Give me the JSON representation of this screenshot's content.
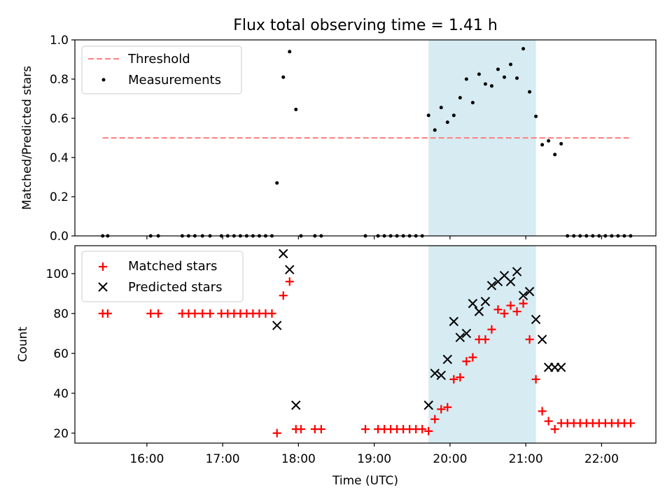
{
  "title": "Flux total observing time = 1.41 h",
  "colors": {
    "threshold": "#ff8080",
    "measurement": "#000000",
    "matched": "#ff0000",
    "predicted": "#000000",
    "span": "#add8e6"
  },
  "chart_data": [
    {
      "type": "scatter",
      "ylabel": "Matched/Predicted stars",
      "ylim": [
        0,
        1.0
      ],
      "yticks": [
        0.0,
        0.2,
        0.4,
        0.6,
        0.8,
        1.0
      ],
      "ytick_labels": [
        "0.0",
        "0.2",
        "0.4",
        "0.6",
        "0.8",
        "1.0"
      ],
      "legend_position": "upper-left",
      "span": [
        "19:43",
        "21:08"
      ],
      "threshold": {
        "name": "Threshold",
        "y": 0.5,
        "x": [
          "15:25",
          "22:23"
        ]
      },
      "series": [
        {
          "name": "Measurements",
          "points": [
            [
              "15:25",
              0
            ],
            [
              "15:29",
              0
            ],
            [
              "16:03",
              0
            ],
            [
              "16:09",
              0
            ],
            [
              "16:28",
              0
            ],
            [
              "16:33",
              0
            ],
            [
              "16:38",
              0
            ],
            [
              "16:44",
              0
            ],
            [
              "16:50",
              0
            ],
            [
              "16:59",
              0
            ],
            [
              "17:04",
              0
            ],
            [
              "17:09",
              0
            ],
            [
              "17:14",
              0
            ],
            [
              "17:19",
              0
            ],
            [
              "17:24",
              0
            ],
            [
              "17:29",
              0
            ],
            [
              "17:34",
              0
            ],
            [
              "17:39",
              0
            ],
            [
              "17:43",
              0.27
            ],
            [
              "17:48",
              0.81
            ],
            [
              "17:53",
              0.94
            ],
            [
              "17:58",
              0.645
            ],
            [
              "18:02",
              0
            ],
            [
              "18:13",
              0
            ],
            [
              "18:18",
              0
            ],
            [
              "18:53",
              0
            ],
            [
              "19:03",
              0
            ],
            [
              "19:08",
              0
            ],
            [
              "19:13",
              0
            ],
            [
              "19:18",
              0
            ],
            [
              "19:23",
              0
            ],
            [
              "19:28",
              0
            ],
            [
              "19:33",
              0
            ],
            [
              "19:38",
              0
            ],
            [
              "19:43",
              0.615
            ],
            [
              "19:48",
              0.54
            ],
            [
              "19:53",
              0.655
            ],
            [
              "19:58",
              0.58
            ],
            [
              "20:03",
              0.615
            ],
            [
              "20:08",
              0.705
            ],
            [
              "20:13",
              0.8
            ],
            [
              "20:18",
              0.68
            ],
            [
              "20:23",
              0.825
            ],
            [
              "20:28",
              0.775
            ],
            [
              "20:33",
              0.765
            ],
            [
              "20:38",
              0.85
            ],
            [
              "20:43",
              0.81
            ],
            [
              "20:48",
              0.875
            ],
            [
              "20:53",
              0.805
            ],
            [
              "20:58",
              0.955
            ],
            [
              "21:03",
              0.735
            ],
            [
              "21:08",
              0.61
            ],
            [
              "21:13",
              0.465
            ],
            [
              "21:18",
              0.485
            ],
            [
              "21:23",
              0.415
            ],
            [
              "21:28",
              0.47
            ],
            [
              "21:33",
              0
            ],
            [
              "21:38",
              0
            ],
            [
              "21:43",
              0
            ],
            [
              "21:48",
              0
            ],
            [
              "21:53",
              0
            ],
            [
              "21:58",
              0
            ],
            [
              "22:03",
              0
            ],
            [
              "22:08",
              0
            ],
            [
              "22:13",
              0
            ],
            [
              "22:18",
              0
            ],
            [
              "22:23",
              0
            ]
          ]
        }
      ]
    },
    {
      "type": "scatter",
      "xlabel": "Time (UTC)",
      "ylabel": "Count",
      "ylim": [
        15,
        114
      ],
      "yticks": [
        20,
        40,
        60,
        80,
        100
      ],
      "ytick_labels": [
        "20",
        "40",
        "60",
        "80",
        "100"
      ],
      "xticks": [
        "16:00",
        "17:00",
        "18:00",
        "19:00",
        "20:00",
        "21:00",
        "22:00"
      ],
      "xlim": [
        "15:03",
        "22:43"
      ],
      "legend_position": "upper-left",
      "span": [
        "19:43",
        "21:08"
      ],
      "series": [
        {
          "name": "Matched stars",
          "marker": "plus",
          "points": [
            [
              "15:25",
              80
            ],
            [
              "15:29",
              80
            ],
            [
              "16:03",
              80
            ],
            [
              "16:09",
              80
            ],
            [
              "16:28",
              80
            ],
            [
              "16:33",
              80
            ],
            [
              "16:38",
              80
            ],
            [
              "16:44",
              80
            ],
            [
              "16:50",
              80
            ],
            [
              "16:59",
              80
            ],
            [
              "17:04",
              80
            ],
            [
              "17:09",
              80
            ],
            [
              "17:14",
              80
            ],
            [
              "17:19",
              80
            ],
            [
              "17:24",
              80
            ],
            [
              "17:29",
              80
            ],
            [
              "17:34",
              80
            ],
            [
              "17:39",
              80
            ],
            [
              "17:43",
              20
            ],
            [
              "17:48",
              89
            ],
            [
              "17:53",
              96
            ],
            [
              "17:58",
              22
            ],
            [
              "18:02",
              22
            ],
            [
              "18:13",
              22
            ],
            [
              "18:18",
              22
            ],
            [
              "18:53",
              22
            ],
            [
              "19:03",
              22
            ],
            [
              "19:08",
              22
            ],
            [
              "19:13",
              22
            ],
            [
              "19:18",
              22
            ],
            [
              "19:23",
              22
            ],
            [
              "19:28",
              22
            ],
            [
              "19:33",
              22
            ],
            [
              "19:38",
              22
            ],
            [
              "19:43",
              21
            ],
            [
              "19:48",
              27
            ],
            [
              "19:53",
              32
            ],
            [
              "19:58",
              33
            ],
            [
              "20:03",
              47
            ],
            [
              "20:08",
              48
            ],
            [
              "20:13",
              56
            ],
            [
              "20:18",
              58
            ],
            [
              "20:23",
              67
            ],
            [
              "20:28",
              67
            ],
            [
              "20:33",
              72
            ],
            [
              "20:38",
              82
            ],
            [
              "20:43",
              80
            ],
            [
              "20:48",
              84
            ],
            [
              "20:53",
              81
            ],
            [
              "20:58",
              85
            ],
            [
              "21:03",
              67
            ],
            [
              "21:08",
              47
            ],
            [
              "21:13",
              31
            ],
            [
              "21:18",
              26
            ],
            [
              "21:23",
              22
            ],
            [
              "21:28",
              25
            ],
            [
              "21:33",
              25
            ],
            [
              "21:38",
              25
            ],
            [
              "21:43",
              25
            ],
            [
              "21:48",
              25
            ],
            [
              "21:53",
              25
            ],
            [
              "21:58",
              25
            ],
            [
              "22:03",
              25
            ],
            [
              "22:08",
              25
            ],
            [
              "22:13",
              25
            ],
            [
              "22:18",
              25
            ],
            [
              "22:23",
              25
            ]
          ]
        },
        {
          "name": "Predicted stars",
          "marker": "x",
          "points": [
            [
              "17:43",
              74
            ],
            [
              "17:48",
              110
            ],
            [
              "17:53",
              102
            ],
            [
              "17:58",
              34
            ],
            [
              "19:43",
              34
            ],
            [
              "19:48",
              50
            ],
            [
              "19:53",
              49
            ],
            [
              "19:58",
              57
            ],
            [
              "20:03",
              76
            ],
            [
              "20:08",
              68
            ],
            [
              "20:13",
              70
            ],
            [
              "20:18",
              85
            ],
            [
              "20:23",
              81
            ],
            [
              "20:28",
              86
            ],
            [
              "20:33",
              94
            ],
            [
              "20:38",
              96
            ],
            [
              "20:43",
              99
            ],
            [
              "20:48",
              96
            ],
            [
              "20:53",
              101
            ],
            [
              "20:58",
              89
            ],
            [
              "21:03",
              91
            ],
            [
              "21:08",
              77
            ],
            [
              "21:13",
              67
            ],
            [
              "21:18",
              53
            ],
            [
              "21:23",
              53
            ],
            [
              "21:28",
              53
            ]
          ]
        }
      ]
    }
  ]
}
